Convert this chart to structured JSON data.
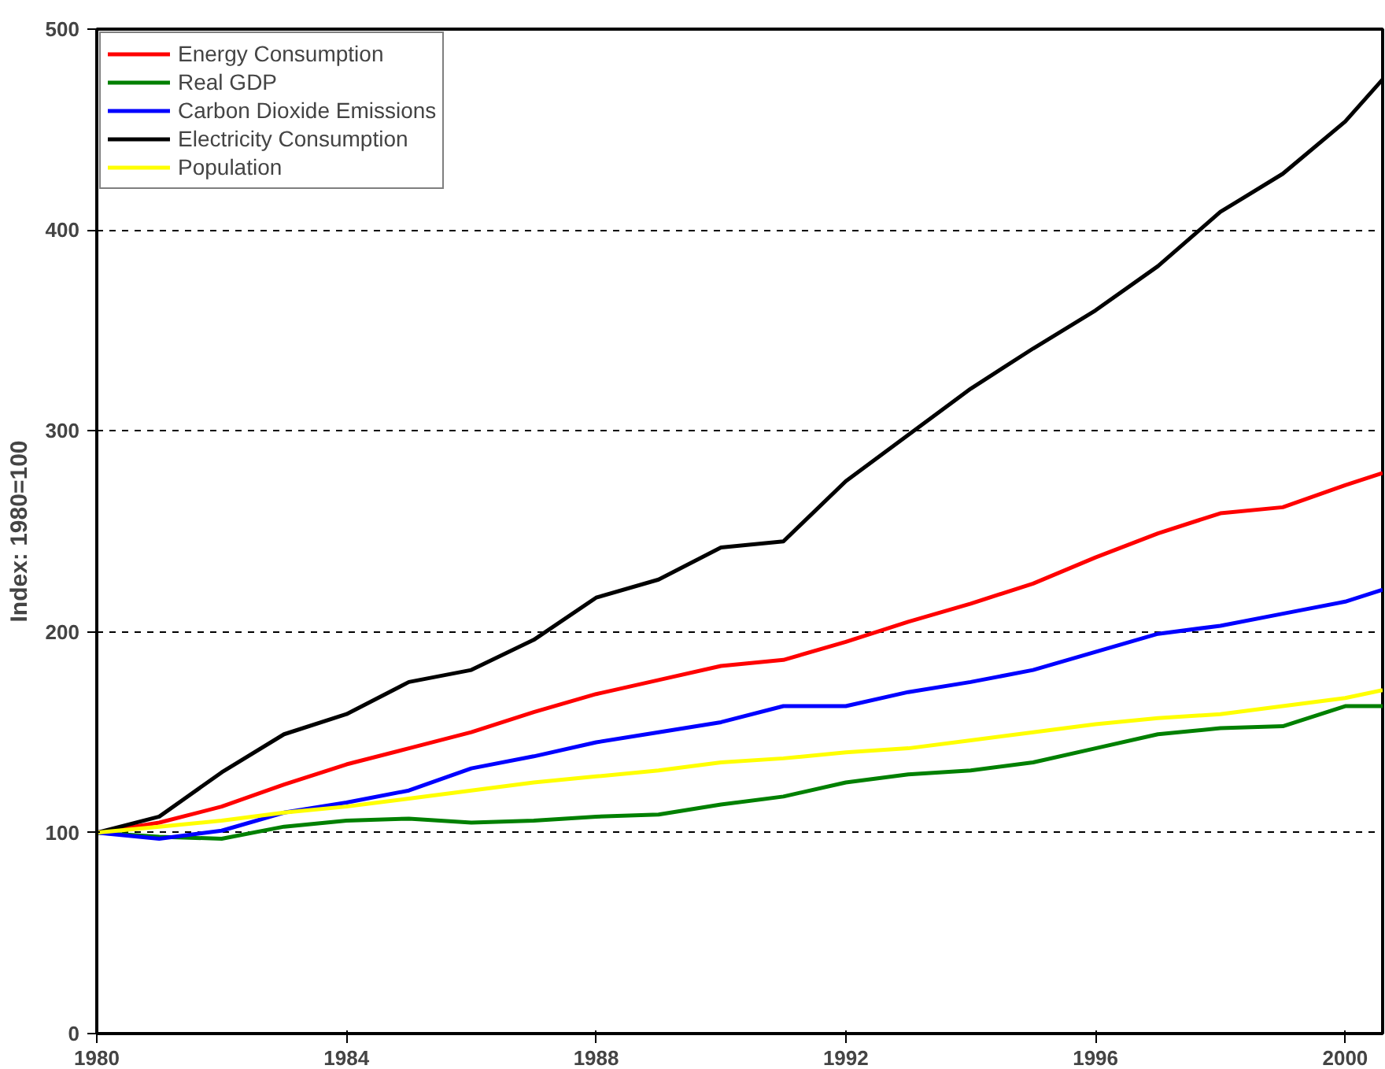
{
  "chart_data": {
    "type": "line",
    "ylabel": "Index: 1980=100",
    "x": [
      1980,
      1981,
      1982,
      1983,
      1984,
      1985,
      1986,
      1987,
      1988,
      1989,
      1990,
      1991,
      1992,
      1993,
      1994,
      1995,
      1996,
      1997,
      1998,
      1999,
      2000,
      2000.6
    ],
    "series": [
      {
        "name": "Energy Consumption",
        "color": "#ff0000",
        "values": [
          100,
          105,
          113,
          124,
          134,
          142,
          150,
          160,
          169,
          176,
          183,
          186,
          195,
          205,
          214,
          224,
          237,
          249,
          259,
          262,
          273,
          279
        ]
      },
      {
        "name": "Real GDP",
        "color": "#008000",
        "values": [
          100,
          98,
          97,
          103,
          106,
          107,
          105,
          106,
          108,
          109,
          114,
          118,
          125,
          129,
          131,
          135,
          142,
          149,
          152,
          153,
          163,
          163
        ]
      },
      {
        "name": "Carbon Dioxide Emissions",
        "color": "#0000ff",
        "values": [
          100,
          97,
          101,
          110,
          115,
          121,
          132,
          138,
          145,
          150,
          155,
          163,
          163,
          170,
          175,
          181,
          190,
          199,
          203,
          209,
          215,
          221
        ]
      },
      {
        "name": "Electricity Consumption",
        "color": "#000000",
        "values": [
          100,
          108,
          130,
          149,
          159,
          175,
          181,
          196,
          217,
          226,
          242,
          245,
          275,
          298,
          321,
          341,
          360,
          382,
          409,
          428,
          454,
          475
        ]
      },
      {
        "name": "Population",
        "color": "#ffff00",
        "values": [
          100,
          103,
          106,
          110,
          113,
          117,
          121,
          125,
          128,
          131,
          135,
          137,
          140,
          142,
          146,
          150,
          154,
          157,
          159,
          163,
          167,
          171
        ]
      }
    ],
    "xlim": [
      1980,
      2000.6
    ],
    "xticks": [
      1980,
      1984,
      1988,
      1992,
      1996,
      2000
    ],
    "ylim": [
      0,
      500
    ],
    "yticks": [
      0,
      100,
      200,
      300,
      400,
      500
    ],
    "grid": "y",
    "legend": "top left",
    "marker": "none",
    "line_style": "solid"
  }
}
